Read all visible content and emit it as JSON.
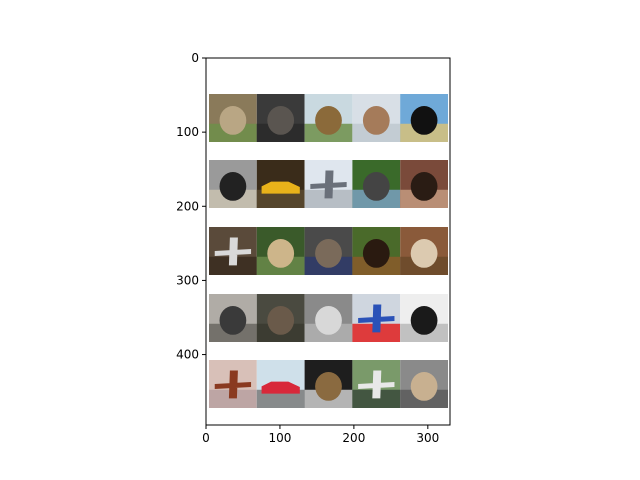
{
  "chart_data": {
    "type": "image-grid",
    "title": "",
    "xlabel": "",
    "ylabel": "",
    "xlim": [
      0,
      330
    ],
    "ylim": [
      495,
      0
    ],
    "xticks": [
      0,
      100,
      200,
      300
    ],
    "yticks": [
      0,
      100,
      200,
      300,
      400
    ],
    "grid": false,
    "legend": "none",
    "rows": 5,
    "cols": 5,
    "tiles": [
      [
        {
          "icon": "cat-photo",
          "colors": [
            "#8a7a5a",
            "#b9a684",
            "#6d8f4a"
          ]
        },
        {
          "icon": "cat-photo",
          "colors": [
            "#3a3a3a",
            "#5a5550",
            "#2a2a2a"
          ]
        },
        {
          "icon": "dog-photo",
          "colors": [
            "#c9d9e0",
            "#8b6a3a",
            "#6f8f4a"
          ]
        },
        {
          "icon": "dog-photo",
          "colors": [
            "#d8dfe6",
            "#a57b5a",
            "#bfc9cf"
          ]
        },
        {
          "icon": "dog-photo",
          "colors": [
            "#6fa9d8",
            "#111111",
            "#d8c27a"
          ]
        }
      ],
      [
        {
          "icon": "dog-photo",
          "colors": [
            "#9a9a9a",
            "#222222",
            "#c9c2b0"
          ]
        },
        {
          "icon": "car-photo",
          "colors": [
            "#3a2c1a",
            "#e8b21a",
            "#5a4a30"
          ]
        },
        {
          "icon": "airplane-photo",
          "colors": [
            "#dfe6ee",
            "#6a707a",
            "#b0b6bd"
          ]
        },
        {
          "icon": "dog-photo",
          "colors": [
            "#3a6a2a",
            "#444444",
            "#7aa0c0"
          ]
        },
        {
          "icon": "dog-photo",
          "colors": [
            "#7a4a3a",
            "#2a1c14",
            "#c49a80"
          ]
        }
      ],
      [
        {
          "icon": "airplane-photo",
          "colors": [
            "#5a4a3a",
            "#d9d9d9",
            "#3a2c20"
          ]
        },
        {
          "icon": "cat-photo",
          "colors": [
            "#3a5a2a",
            "#cdb58a",
            "#6a8a4a"
          ]
        },
        {
          "icon": "cat-photo",
          "colors": [
            "#4a4a4a",
            "#7a6a5a",
            "#2e3a6a"
          ]
        },
        {
          "icon": "dog-photo",
          "colors": [
            "#4a6a2a",
            "#2a1a10",
            "#8a5a2a"
          ]
        },
        {
          "icon": "dog-photo",
          "colors": [
            "#8a5a3a",
            "#dccab0",
            "#6a4a2a"
          ]
        }
      ],
      [
        {
          "icon": "dog-photo",
          "colors": [
            "#b0aca6",
            "#3a3a3a",
            "#6a6660"
          ]
        },
        {
          "icon": "cat-photo",
          "colors": [
            "#4a4a40",
            "#6a5a4a",
            "#3a3a30"
          ]
        },
        {
          "icon": "cat-photo",
          "colors": [
            "#8a8a8a",
            "#d8d8d8",
            "#b0b0b0"
          ]
        },
        {
          "icon": "airplane-photo",
          "colors": [
            "#cfd6df",
            "#2a52b8",
            "#e02020"
          ]
        },
        {
          "icon": "dog-photo",
          "colors": [
            "#eeeeee",
            "#1a1a1a",
            "#b8b8b8"
          ]
        }
      ],
      [
        {
          "icon": "airplane-photo",
          "colors": [
            "#d8c0b8",
            "#8a3a20",
            "#b8a0a0"
          ]
        },
        {
          "icon": "car-photo",
          "colors": [
            "#cfe0ea",
            "#d8283a",
            "#7a7a7a"
          ]
        },
        {
          "icon": "cat-photo",
          "colors": [
            "#1e1e1e",
            "#8a6a40",
            "#cfcfcf"
          ]
        },
        {
          "icon": "airplane-photo",
          "colors": [
            "#7a9a6a",
            "#e8e8e8",
            "#3a4a3a"
          ]
        },
        {
          "icon": "dog-photo",
          "colors": [
            "#8a8a8a",
            "#c8b090",
            "#5a5a5a"
          ]
        }
      ]
    ]
  }
}
